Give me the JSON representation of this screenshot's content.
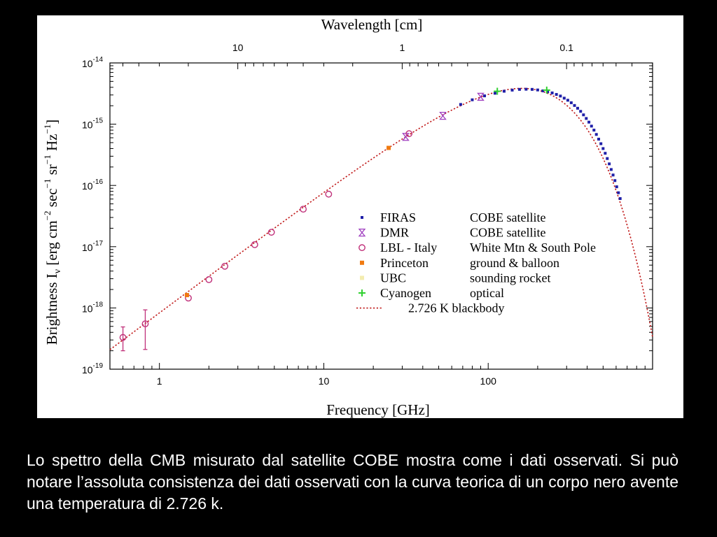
{
  "chart_data": {
    "type": "scatter",
    "xlabel": "Frequency [GHz]",
    "ylabel": "Brightness I",
    "ylabel_subscript": "ν",
    "ylabel_units_prefix": "[erg cm",
    "ylabel_units_suffix": "sec",
    "ylabel_units_sr": "sr",
    "ylabel_units_hz": "Hz",
    "ylabel_units_end": "]",
    "top_axis_label": "Wavelength [cm]",
    "x_scale": "log",
    "y_scale": "log",
    "xlim": [
      0.5,
      1000
    ],
    "ylim": [
      1e-19,
      1e-14
    ],
    "x_ticks": [
      {
        "value": 1,
        "label": "1"
      },
      {
        "value": 10,
        "label": "10"
      },
      {
        "value": 100,
        "label": "100"
      }
    ],
    "top_ticks": [
      {
        "value": 10,
        "label": "10"
      },
      {
        "value": 1,
        "label": "1"
      },
      {
        "value": 0.1,
        "label": "0.1"
      }
    ],
    "y_ticks": [
      {
        "value": 1e-14,
        "label": "10",
        "exponent": "-14"
      },
      {
        "value": 1e-15,
        "label": "10",
        "exponent": "-15"
      },
      {
        "value": 1e-16,
        "label": "10",
        "exponent": "-16"
      },
      {
        "value": 1e-17,
        "label": "10",
        "exponent": "-17"
      },
      {
        "value": 1e-18,
        "label": "10",
        "exponent": "-18"
      },
      {
        "value": 1e-19,
        "label": "10",
        "exponent": "-19"
      }
    ],
    "series": [
      {
        "name": "FIRAS",
        "label2": "COBE satellite",
        "marker": "square",
        "color": "#1f1fa8",
        "points": [
          [
            68,
            2.1e-15
          ],
          [
            80,
            2.5e-15
          ],
          [
            95,
            2.9e-15
          ],
          [
            110,
            3.2e-15
          ],
          [
            125,
            3.45e-15
          ],
          [
            140,
            3.6e-15
          ],
          [
            155,
            3.7e-15
          ],
          [
            170,
            3.72e-15
          ],
          [
            185,
            3.7e-15
          ],
          [
            200,
            3.62e-15
          ],
          [
            215,
            3.5e-15
          ],
          [
            230,
            3.38e-15
          ],
          [
            245,
            3.24e-15
          ],
          [
            260,
            3.06e-15
          ],
          [
            275,
            2.88e-15
          ],
          [
            290,
            2.66e-15
          ],
          [
            305,
            2.46e-15
          ],
          [
            320,
            2.24e-15
          ],
          [
            335,
            2.02e-15
          ],
          [
            350,
            1.82e-15
          ],
          [
            365,
            1.62e-15
          ],
          [
            380,
            1.42e-15
          ],
          [
            395,
            1.24e-15
          ],
          [
            410,
            1.08e-15
          ],
          [
            425,
            9.3e-16
          ],
          [
            440,
            8e-16
          ],
          [
            455,
            6.8e-16
          ],
          [
            470,
            5.7e-16
          ],
          [
            485,
            4.8e-16
          ],
          [
            500,
            4e-16
          ],
          [
            515,
            3.35e-16
          ],
          [
            530,
            2.75e-16
          ],
          [
            545,
            2.25e-16
          ],
          [
            560,
            1.82e-16
          ],
          [
            575,
            1.48e-16
          ],
          [
            590,
            1.2e-16
          ],
          [
            605,
            9.5e-17
          ],
          [
            620,
            7.6e-17
          ],
          [
            635,
            6.1e-17
          ]
        ]
      },
      {
        "name": "DMR",
        "label2": "COBE satellite",
        "marker": "hourglass",
        "color": "#a040c0",
        "points": [
          [
            31.5,
            6.2e-16
          ],
          [
            53,
            1.37e-15
          ],
          [
            90,
            2.8e-15
          ]
        ]
      },
      {
        "name": "LBL - Italy",
        "label2": "White Mtn & South Pole",
        "marker": "circle",
        "color": "#c0307a",
        "points": [
          [
            0.6,
            3.3e-19
          ],
          [
            0.82,
            5.5e-19
          ],
          [
            1.5,
            1.45e-18
          ],
          [
            2.0,
            2.9e-18
          ],
          [
            2.5,
            4.8e-18
          ],
          [
            3.8,
            1.08e-17
          ],
          [
            4.8,
            1.72e-17
          ],
          [
            7.5,
            4.1e-17
          ],
          [
            10.7,
            7.2e-17
          ],
          [
            33,
            7e-16
          ]
        ]
      },
      {
        "name": "Princeton",
        "label2": "ground & balloon",
        "marker": "square-filled",
        "color": "#f07a10",
        "points": [
          [
            1.47,
            1.62e-18
          ],
          [
            24.8,
            4.1e-16
          ]
        ]
      },
      {
        "name": "UBC",
        "label2": "sounding rocket",
        "marker": "square-filled",
        "color": "#f3ecb0",
        "points": []
      },
      {
        "name": "Cyanogen",
        "label2": "optical",
        "marker": "plus",
        "color": "#30d030",
        "points": [
          [
            113.6,
            3.45e-15
          ],
          [
            227,
            3.6e-15
          ]
        ]
      },
      {
        "name": "",
        "label2": "2.726 K blackbody",
        "marker": "dotted-line",
        "color": "#c01818",
        "temperature_K": 2.726,
        "points": []
      }
    ]
  },
  "caption": "Lo spettro della CMB misurato dal satellite COBE mostra come i dati osservati. Si può notare l’assoluta consistenza dei dati osservati con la curva teorica di un corpo nero avente una temperatura di 2.726 k."
}
